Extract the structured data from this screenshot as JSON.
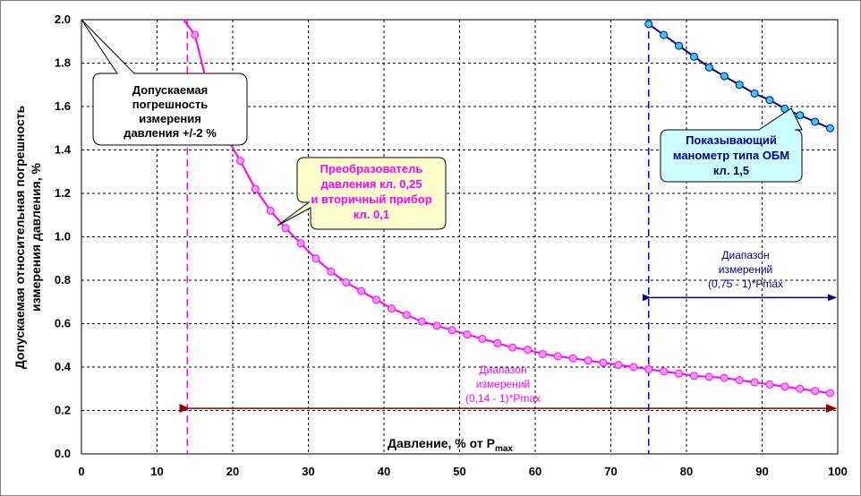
{
  "chart_data": {
    "type": "line",
    "x": [
      15,
      17,
      19,
      21,
      23,
      25,
      27,
      29,
      31,
      33,
      35,
      37,
      39,
      41,
      43,
      45,
      47,
      49,
      51,
      53,
      55,
      57,
      59,
      61,
      63,
      65,
      67,
      69,
      71,
      73,
      75,
      77,
      79,
      81,
      83,
      85,
      87,
      89,
      91,
      93,
      95,
      97,
      99
    ],
    "xlabel": "Давление, % от P",
    "xlabel_sub": "max",
    "ylabel_line1": "Допускаемая относительная погрешность",
    "ylabel_line2": "измерения давления, %",
    "xlim": [
      0,
      100
    ],
    "ylim": [
      0,
      2.0
    ],
    "x_ticks": [
      "0",
      "10",
      "20",
      "30",
      "40",
      "50",
      "60",
      "70",
      "80",
      "90",
      "100"
    ],
    "y_ticks": [
      "0.0",
      "0.2",
      "0.4",
      "0.6",
      "0.8",
      "1.0",
      "1.2",
      "1.4",
      "1.6",
      "1.8",
      "2.0"
    ],
    "grid": true,
    "series": [
      {
        "color": "#ff00ff",
        "marker_fill": "#ff99ff",
        "x": [
          15,
          17,
          19,
          21,
          23,
          25,
          27,
          29,
          31,
          33,
          35,
          37,
          39,
          41,
          43,
          45,
          47,
          49,
          51,
          53,
          55,
          57,
          59,
          61,
          63,
          65,
          67,
          69,
          71,
          73,
          75,
          77,
          79,
          81,
          83,
          85,
          87,
          89,
          91,
          93,
          95,
          97,
          99
        ],
        "values": [
          1.93,
          1.65,
          1.47,
          1.35,
          1.22,
          1.12,
          1.04,
          0.97,
          0.9,
          0.84,
          0.79,
          0.75,
          0.71,
          0.67,
          0.64,
          0.61,
          0.59,
          0.57,
          0.55,
          0.53,
          0.51,
          0.49,
          0.48,
          0.46,
          0.45,
          0.44,
          0.43,
          0.42,
          0.41,
          0.4,
          0.39,
          0.38,
          0.37,
          0.36,
          0.355,
          0.35,
          0.34,
          0.33,
          0.32,
          0.31,
          0.3,
          0.29,
          0.28
        ]
      },
      {
        "color": "#00008b",
        "marker_fill": "#33ccff",
        "x": [
          75,
          77,
          79,
          81,
          83,
          85,
          87,
          89,
          91,
          93,
          95,
          97,
          99
        ],
        "values": [
          1.98,
          1.93,
          1.88,
          1.83,
          1.78,
          1.74,
          1.7,
          1.66,
          1.63,
          1.59,
          1.56,
          1.53,
          1.5
        ]
      }
    ],
    "vlines": [
      {
        "x": 14,
        "color": "#ff00ff"
      },
      {
        "x": 75,
        "color": "#0000ff"
      }
    ],
    "arrows": [
      {
        "x1": 14,
        "x2": 100,
        "y": 0.21,
        "color": "#8b0000"
      },
      {
        "x1": 75,
        "x2": 100,
        "y": 0.72,
        "color": "#00008b"
      }
    ],
    "annotations": {
      "allowed_error": [
        "Допускаемая",
        "погрешность",
        "измерения",
        "давления +/-2 %"
      ],
      "converter": [
        "Преобразователь",
        "давления кл. 0,25",
        "и вторичный прибор",
        "кл. 0,1"
      ],
      "gauge": [
        "Показывающий",
        "манометр типа ОБМ",
        "кл. 1,5"
      ],
      "range_converter": [
        "Диапазон",
        "измерений",
        "(0,14 - 1)*Pmax"
      ],
      "range_gauge": [
        "Диапазон",
        "измерений",
        "(0,75 - 1)*Pmax"
      ]
    }
  }
}
